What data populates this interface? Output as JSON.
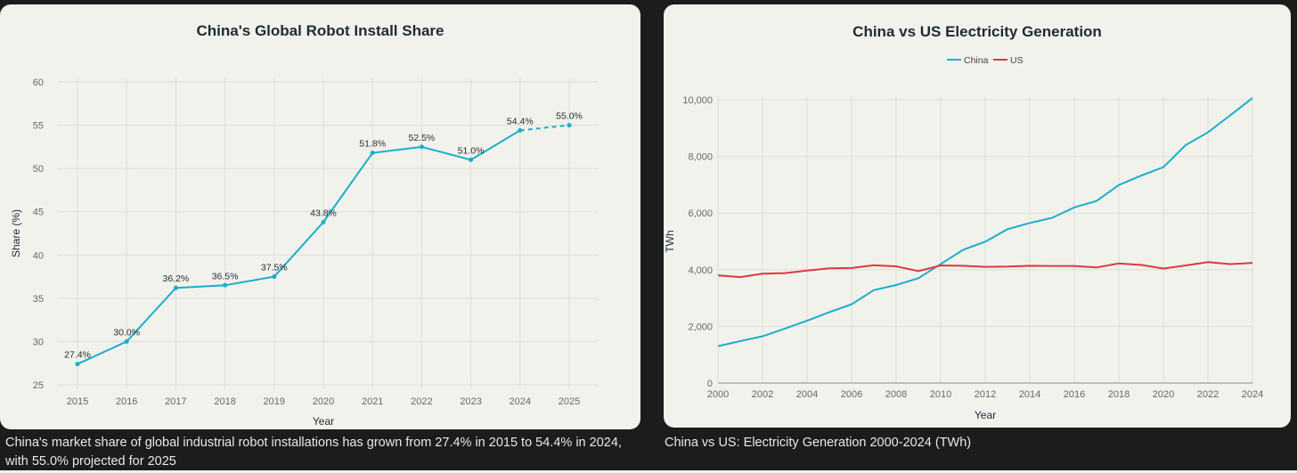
{
  "chart_data": [
    {
      "type": "line",
      "title": "China's Global Robot Install Share",
      "xlabel": "Year",
      "ylabel": "Share (%)",
      "ylim": [
        25,
        60
      ],
      "yticks": [
        "25",
        "30",
        "35",
        "40",
        "45",
        "50",
        "55",
        "60"
      ],
      "categories": [
        "2015",
        "2016",
        "2017",
        "2018",
        "2019",
        "2020",
        "2021",
        "2022",
        "2023",
        "2024",
        "2025"
      ],
      "values": [
        27.4,
        30.0,
        36.2,
        36.5,
        37.5,
        43.8,
        51.8,
        52.5,
        51.0,
        54.4,
        55.0
      ],
      "data_labels": [
        "27.4%",
        "30.0%",
        "36.2%",
        "36.5%",
        "37.5%",
        "43.8%",
        "51.8%",
        "52.5%",
        "51.0%",
        "54.4%",
        "55.0%"
      ],
      "projected_from": "2024",
      "color": "#1aaecb",
      "grid": true
    },
    {
      "type": "line",
      "title": "China vs US Electricity Generation",
      "xlabel": "Year",
      "ylabel": "TWh",
      "ylim": [
        0,
        10000
      ],
      "yticks": [
        "0",
        "2,000",
        "4,000",
        "6,000",
        "8,000",
        "10,000"
      ],
      "xticks": [
        "2000",
        "2002",
        "2004",
        "2006",
        "2008",
        "2010",
        "2012",
        "2014",
        "2016",
        "2018",
        "2020",
        "2022",
        "2024"
      ],
      "x": [
        2000,
        2001,
        2002,
        2003,
        2004,
        2005,
        2006,
        2007,
        2008,
        2009,
        2010,
        2011,
        2012,
        2013,
        2014,
        2015,
        2016,
        2017,
        2018,
        2019,
        2020,
        2021,
        2022,
        2023,
        2024
      ],
      "legend_position": "top-center",
      "grid": true,
      "series": [
        {
          "name": "China",
          "color": "#1aaecb",
          "values": [
            1300,
            1480,
            1650,
            1920,
            2200,
            2500,
            2780,
            3280,
            3460,
            3700,
            4200,
            4700,
            4990,
            5430,
            5650,
            5830,
            6200,
            6430,
            6990,
            7320,
            7620,
            8400,
            8850,
            9450,
            10060
          ]
        },
        {
          "name": "US",
          "color": "#dc3a3f",
          "values": [
            3800,
            3740,
            3860,
            3880,
            3970,
            4050,
            4060,
            4160,
            4120,
            3950,
            4150,
            4140,
            4100,
            4110,
            4140,
            4130,
            4130,
            4080,
            4220,
            4170,
            4040,
            4150,
            4270,
            4200,
            4240
          ]
        }
      ]
    }
  ],
  "captions": {
    "left": "China's market share of global industrial robot installations has grown from 27.4% in 2015 to 54.4% in 2024, with 55.0% projected for 2025",
    "right": "China vs US: Electricity Generation 2000-2024 (TWh)"
  }
}
